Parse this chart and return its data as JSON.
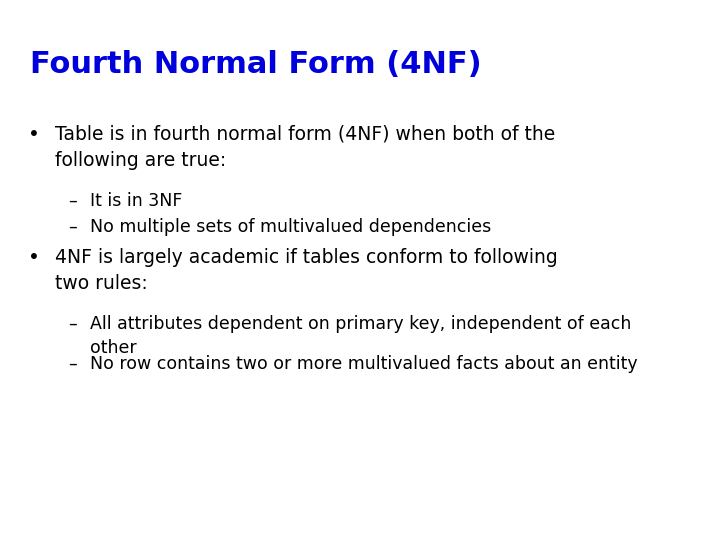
{
  "title": "Fourth Normal Form (4NF)",
  "title_color": "#0000DD",
  "title_fontsize": 22,
  "background_color": "#ffffff",
  "bullet1": "Table is in fourth normal form (4NF) when both of the\nfollowing are true:",
  "bullet1_sub": [
    "It is in 3NF",
    "No multiple sets of multivalued dependencies"
  ],
  "bullet2": "4NF is largely academic if tables conform to following\ntwo rules:",
  "bullet2_sub": [
    "All attributes dependent on primary key, independent of each\nother",
    "No row contains two or more multivalued facts about an entity"
  ],
  "bullet_fontsize": 13.5,
  "sub_fontsize": 12.5,
  "text_color": "#000000",
  "figsize": [
    7.2,
    5.4
  ],
  "dpi": 100
}
